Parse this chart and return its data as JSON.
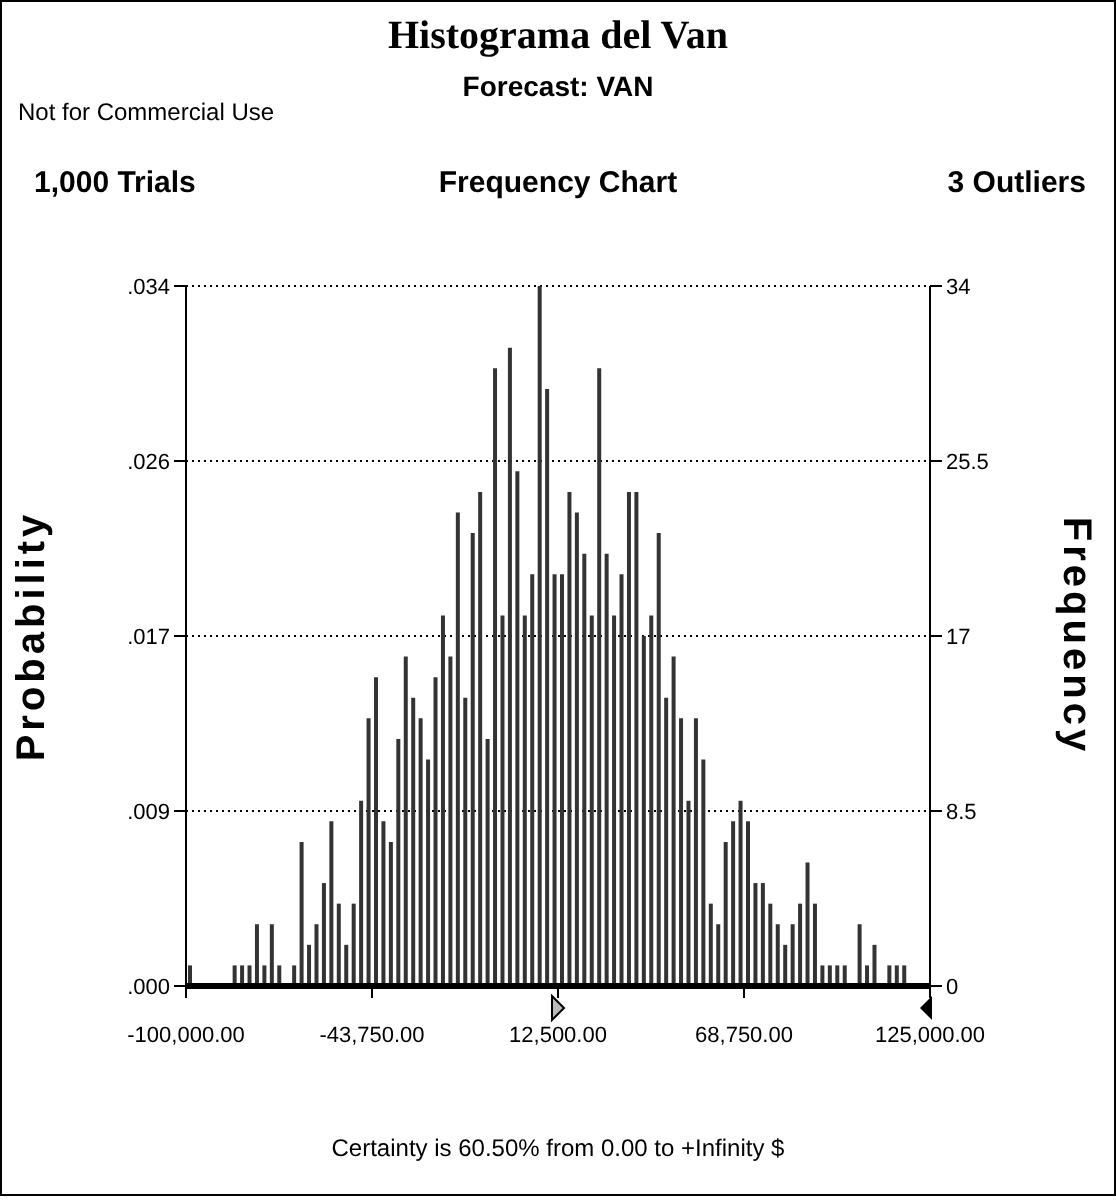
{
  "chart_data": {
    "type": "histogram",
    "title": "Histograma del Van",
    "subtitle": "Forecast: VAN",
    "annotations": [
      "Not for Commercial Use",
      "1,000 Trials",
      "Frequency Chart",
      "3 Outliers",
      "Certainty is 60.50% from 0.00 to +Infinity $"
    ],
    "ylabel": "Probability",
    "y2label": "Frequency",
    "bins": [
      -100000,
      -97750,
      -95500,
      -93250,
      -91000,
      -88750,
      -86500,
      -84250,
      -82000,
      -79750,
      -77500,
      -75250,
      -73000,
      -70750,
      -68500,
      -66250,
      -64000,
      -61750,
      -59500,
      -57250,
      -55000,
      -52750,
      -50500,
      -48250,
      -46000,
      -43750,
      -41500,
      -39250,
      -37000,
      -34750,
      -32500,
      -30250,
      -28000,
      -25750,
      -23500,
      -21250,
      -19000,
      -16750,
      -14500,
      -12250,
      -10000,
      -7750,
      -5500,
      -3250,
      -1000,
      1250,
      3500,
      5750,
      8000,
      10250,
      12500,
      14750,
      17000,
      19250,
      21500,
      23750,
      26000,
      28250,
      30500,
      32750,
      35000,
      37250,
      39500,
      41750,
      44000,
      46250,
      48500,
      50750,
      53000,
      55250,
      57500,
      59750,
      62000,
      64250,
      66500,
      68750,
      71000,
      73250,
      75500,
      77750,
      80000,
      82250,
      84500,
      86750,
      89000,
      91250,
      93500,
      95750,
      98000,
      100250,
      102500,
      104750,
      107000,
      109250,
      111500,
      113750,
      116000,
      118250,
      120500,
      122750,
      125000
    ],
    "series": [
      {
        "color": "#333333",
        "axis": "y2",
        "values": [
          1,
          0,
          0,
          0,
          0,
          0,
          1,
          1,
          1,
          3,
          1,
          3,
          1,
          0,
          1,
          7,
          2,
          3,
          5,
          8,
          4,
          2,
          4,
          9,
          13,
          15,
          8,
          7,
          12,
          16,
          14,
          13,
          11,
          15,
          18,
          16,
          23,
          14,
          22,
          24,
          12,
          30,
          18,
          31,
          25,
          18,
          20,
          34,
          29,
          20,
          20,
          24,
          23,
          21,
          18,
          30,
          21,
          18,
          20,
          24,
          24,
          17,
          18,
          22,
          14,
          16,
          13,
          9,
          13,
          11,
          4,
          3,
          7,
          8,
          9,
          8,
          5,
          5,
          4,
          3,
          2,
          3,
          4,
          6,
          4,
          1,
          1,
          1,
          1,
          0,
          3,
          1,
          2,
          0,
          1,
          1,
          1,
          0,
          0,
          0
        ]
      }
    ],
    "xlim": [
      -100000,
      125000
    ],
    "xticks": [
      {
        "value": -100000,
        "label": "-100,000.00"
      },
      {
        "value": -43750,
        "label": "-43,750.00"
      },
      {
        "value": 12500,
        "label": "12,500.00"
      },
      {
        "value": 68750,
        "label": "68,750.00"
      },
      {
        "value": 125000,
        "label": "125,000.00"
      }
    ],
    "ylim": [
      0,
      0.034
    ],
    "yticks": [
      {
        "value": 0,
        "label": ".000"
      },
      {
        "value": 0.0085,
        "label": ".009"
      },
      {
        "value": 0.017,
        "label": ".017"
      },
      {
        "value": 0.0255,
        "label": ".026"
      },
      {
        "value": 0.034,
        "label": ".034"
      }
    ],
    "y2lim": [
      0,
      34
    ],
    "y2ticks": [
      0,
      8.5,
      17,
      25.5,
      34
    ],
    "grid": "y"
  }
}
